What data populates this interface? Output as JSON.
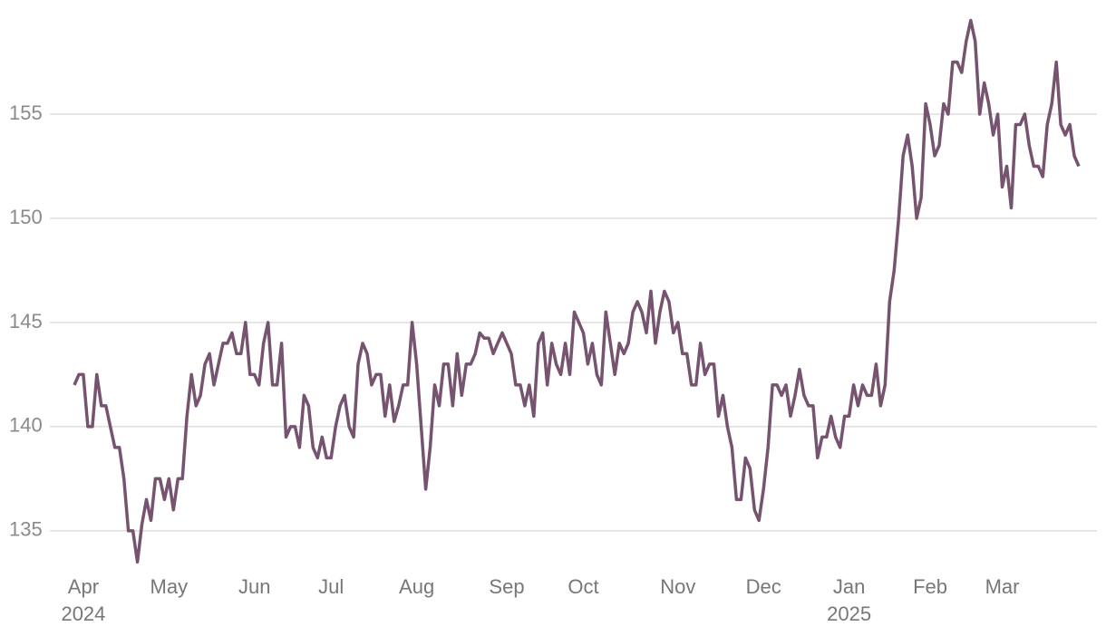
{
  "chart_data": {
    "type": "line",
    "series": [
      {
        "color": "#76536f",
        "values": [
          142,
          142.5,
          142.5,
          140,
          140,
          142.5,
          141,
          141,
          140,
          139,
          139,
          137.5,
          135,
          135,
          133.5,
          135.3,
          136.5,
          135.5,
          137.5,
          137.5,
          136.5,
          137.5,
          136,
          137.5,
          137.5,
          140.5,
          142.5,
          141,
          141.5,
          143,
          143.5,
          142,
          143,
          144,
          144,
          144.5,
          143.5,
          143.5,
          145,
          142.5,
          142.5,
          142,
          144,
          145,
          142,
          142,
          144,
          139.5,
          140,
          140,
          139,
          141.5,
          141,
          139,
          138.5,
          139.5,
          138.5,
          138.5,
          140,
          141,
          141.5,
          140,
          139.5,
          143,
          144,
          143.5,
          142,
          142.5,
          142.5,
          140.5,
          142,
          140.25,
          141,
          142,
          142,
          145,
          143,
          140,
          137,
          139,
          142,
          141,
          143,
          143,
          141,
          143.5,
          141.5,
          143,
          143,
          143.5,
          144.5,
          144.25,
          144.25,
          143.5,
          144,
          144.5,
          144,
          143.5,
          142,
          142,
          141,
          142,
          140.5,
          144,
          144.5,
          142,
          144,
          143,
          142.5,
          144,
          142.5,
          145.5,
          145,
          144.5,
          143,
          144,
          142.5,
          142,
          145.5,
          144,
          142.5,
          144,
          143.5,
          144,
          145.5,
          146,
          145.5,
          144.5,
          146.5,
          144,
          145.5,
          146.5,
          146,
          144.5,
          145,
          143.5,
          143.5,
          142,
          142,
          144,
          142.5,
          143,
          143,
          140.5,
          141.5,
          140,
          139,
          136.5,
          136.5,
          138.5,
          138,
          136,
          135.5,
          137,
          139,
          142,
          142,
          141.5,
          142,
          140.5,
          141.5,
          142.75,
          141.5,
          141,
          141,
          138.5,
          139.5,
          139.5,
          140.5,
          139.5,
          139,
          140.5,
          140.5,
          142,
          141,
          142,
          141.5,
          141.5,
          143,
          141,
          142,
          146,
          147.5,
          150,
          153,
          154,
          152.5,
          150,
          151,
          155.5,
          154.5,
          153,
          153.5,
          155.5,
          155,
          157.5,
          157.5,
          157,
          158.5,
          159.5,
          158.5,
          155,
          156.5,
          155.5,
          154,
          155,
          151.5,
          152.5,
          150.5,
          154.5,
          154.5,
          155,
          153.5,
          152.5,
          152.5,
          152,
          154.5,
          155.5,
          157.5,
          154.5,
          154,
          154.5,
          153,
          152.5
        ]
      }
    ],
    "xlim": [
      0,
      223
    ],
    "xticks": [
      {
        "value": 2,
        "label": "Apr",
        "year": "2024"
      },
      {
        "value": 21,
        "label": "May"
      },
      {
        "value": 40,
        "label": "Jun"
      },
      {
        "value": 57,
        "label": "Jul"
      },
      {
        "value": 76,
        "label": "Aug"
      },
      {
        "value": 96,
        "label": "Sep"
      },
      {
        "value": 113,
        "label": "Oct"
      },
      {
        "value": 134,
        "label": "Nov"
      },
      {
        "value": 153,
        "label": "Dec"
      },
      {
        "value": 172,
        "label": "Jan",
        "year": "2025"
      },
      {
        "value": 190,
        "label": "Feb"
      },
      {
        "value": 206,
        "label": "Mar"
      }
    ],
    "ylim": [
      133.3,
      160
    ],
    "yticks": [
      135,
      140,
      145,
      150,
      155
    ],
    "grid": true
  }
}
